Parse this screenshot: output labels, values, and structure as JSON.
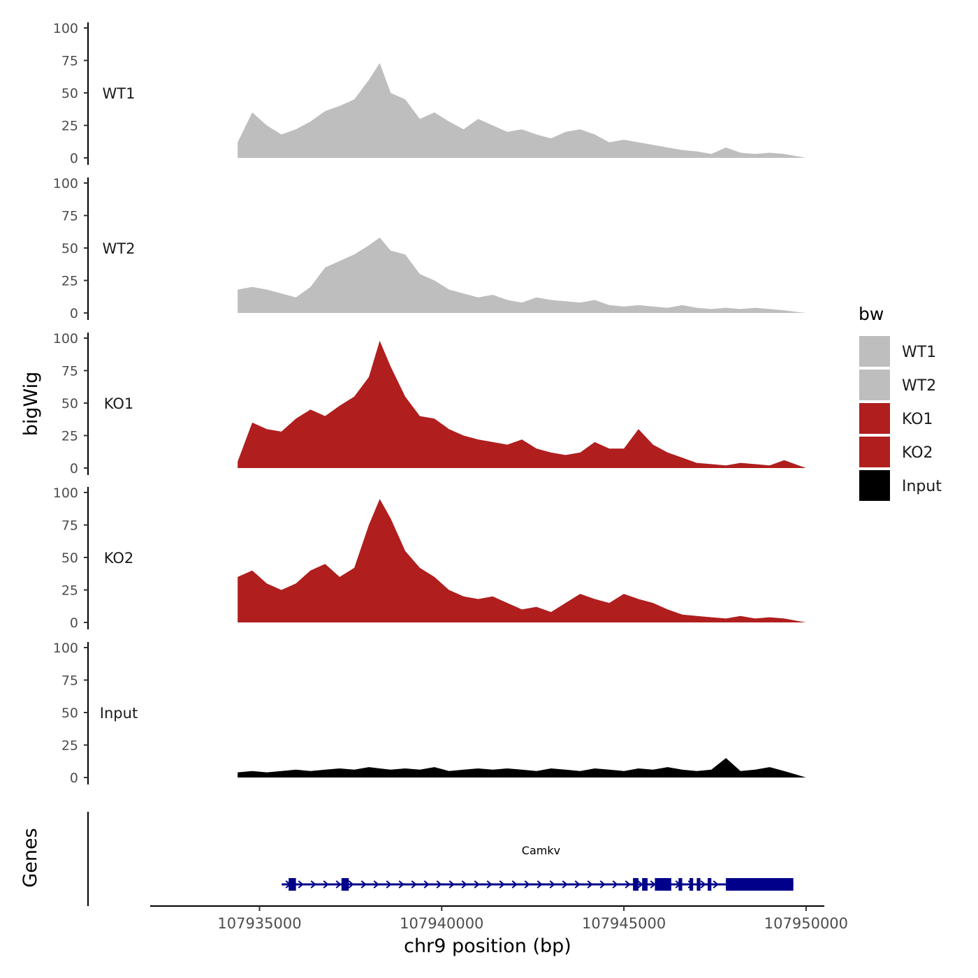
{
  "chart_data": {
    "type": "area",
    "title": "",
    "y_axis_title": "bigWig",
    "x_axis_title": "chr9 position (bp)",
    "x_range": [
      107932000,
      107950500
    ],
    "x_ticks": [
      107935000,
      107940000,
      107945000,
      107950000
    ],
    "x_tick_labels": [
      "107935000",
      "107940000",
      "107945000",
      "107950000"
    ],
    "y_range": [
      0,
      100
    ],
    "y_ticks": [
      0,
      25,
      50,
      75,
      100
    ],
    "y_tick_labels": [
      "0",
      "25",
      "50",
      "75",
      "100"
    ],
    "positions": [
      107934400,
      107934800,
      107935200,
      107935600,
      107936000,
      107936400,
      107936800,
      107937200,
      107937600,
      107938000,
      107938300,
      107938600,
      107939000,
      107939400,
      107939800,
      107940200,
      107940600,
      107941000,
      107941400,
      107941800,
      107942200,
      107942600,
      107943000,
      107943400,
      107943800,
      107944200,
      107944600,
      107945000,
      107945400,
      107945800,
      107946200,
      107946600,
      107947000,
      107947400,
      107947800,
      107948200,
      107948600,
      107949000,
      107949400,
      107950000
    ],
    "series": [
      {
        "name": "WT1",
        "color": "#bebebe",
        "values": [
          12,
          35,
          25,
          18,
          22,
          28,
          36,
          40,
          45,
          60,
          73,
          50,
          45,
          30,
          35,
          28,
          22,
          30,
          25,
          20,
          22,
          18,
          15,
          20,
          22,
          18,
          12,
          14,
          12,
          10,
          8,
          6,
          5,
          3,
          8,
          4,
          3,
          4,
          3,
          0
        ]
      },
      {
        "name": "WT2",
        "color": "#bebebe",
        "values": [
          18,
          20,
          18,
          15,
          12,
          20,
          35,
          40,
          45,
          52,
          58,
          48,
          45,
          30,
          25,
          18,
          15,
          12,
          14,
          10,
          8,
          12,
          10,
          9,
          8,
          10,
          6,
          5,
          6,
          5,
          4,
          6,
          4,
          3,
          4,
          3,
          4,
          3,
          2,
          0
        ]
      },
      {
        "name": "KO1",
        "color": "#b01e1e",
        "values": [
          5,
          35,
          30,
          28,
          38,
          45,
          40,
          48,
          55,
          70,
          98,
          78,
          55,
          40,
          38,
          30,
          25,
          22,
          20,
          18,
          22,
          15,
          12,
          10,
          12,
          20,
          15,
          15,
          30,
          18,
          12,
          8,
          4,
          3,
          2,
          4,
          3,
          2,
          6,
          0
        ]
      },
      {
        "name": "KO2",
        "color": "#b01e1e",
        "values": [
          35,
          40,
          30,
          25,
          30,
          40,
          45,
          35,
          42,
          75,
          95,
          80,
          55,
          42,
          35,
          25,
          20,
          18,
          20,
          15,
          10,
          12,
          8,
          15,
          22,
          18,
          15,
          22,
          18,
          15,
          10,
          6,
          5,
          4,
          3,
          5,
          3,
          4,
          3,
          0
        ]
      },
      {
        "name": "Input",
        "color": "#000000",
        "values": [
          4,
          5,
          4,
          5,
          6,
          5,
          6,
          7,
          6,
          8,
          7,
          6,
          7,
          6,
          8,
          5,
          6,
          7,
          6,
          7,
          6,
          5,
          7,
          6,
          5,
          7,
          6,
          5,
          7,
          6,
          8,
          6,
          5,
          6,
          15,
          5,
          6,
          8,
          5,
          0
        ]
      }
    ],
    "legend": {
      "title": "bw",
      "position": "right",
      "entries": [
        {
          "label": "WT1",
          "color": "#bebebe"
        },
        {
          "label": "WT2",
          "color": "#bebebe"
        },
        {
          "label": "KO1",
          "color": "#b01e1e"
        },
        {
          "label": "KO2",
          "color": "#b01e1e"
        },
        {
          "label": "Input",
          "color": "#000000"
        }
      ]
    },
    "genes_track": {
      "label": "Genes",
      "gene_name": "Camkv",
      "color": "#00008b",
      "strand": "+",
      "start": 107935800,
      "end": 107949650,
      "exons": [
        [
          107935800,
          107936000
        ],
        [
          107937250,
          107937450
        ],
        [
          107945250,
          107945400
        ],
        [
          107945500,
          107945650
        ],
        [
          107945850,
          107946300
        ],
        [
          107946500,
          107946600
        ],
        [
          107946800,
          107946900
        ],
        [
          107947000,
          107947100
        ],
        [
          107947300,
          107947400
        ],
        [
          107947800,
          107949650
        ]
      ]
    }
  }
}
